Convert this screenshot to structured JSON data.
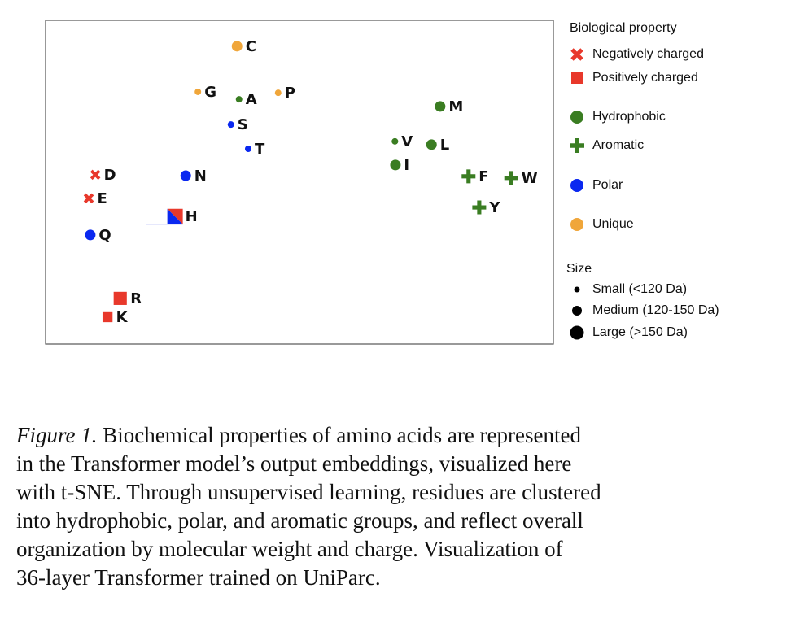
{
  "chart_data": {
    "type": "scatter",
    "title": "",
    "xlabel": "",
    "ylabel": "",
    "xlim": [
      0,
      100
    ],
    "ylim": [
      0,
      100
    ],
    "grid": false,
    "axes_ticks": false,
    "legend_placement": "right",
    "categories": {
      "negative": {
        "label": "Negatively charged",
        "marker": "x",
        "color": "#e8382b"
      },
      "positive": {
        "label": "Positively charged",
        "marker": "square",
        "color": "#e8382b"
      },
      "hydrophobic": {
        "label": "Hydrophobic",
        "marker": "circle",
        "color": "#3a7d22"
      },
      "aromatic": {
        "label": "Aromatic",
        "marker": "plus",
        "color": "#3a7d22"
      },
      "polar": {
        "label": "Polar",
        "marker": "circle",
        "color": "#0a28f0"
      },
      "unique": {
        "label": "Unique",
        "marker": "circle",
        "color": "#f0a63a"
      }
    },
    "points": [
      {
        "label": "C",
        "x": 37.7,
        "y": 92.0,
        "category": "unique",
        "size": "medium"
      },
      {
        "label": "G",
        "x": 30.0,
        "y": 77.9,
        "category": "unique",
        "size": "small"
      },
      {
        "label": "A",
        "x": 38.1,
        "y": 75.6,
        "category": "hydrophobic",
        "size": "small"
      },
      {
        "label": "P",
        "x": 45.8,
        "y": 77.6,
        "category": "unique",
        "size": "small"
      },
      {
        "label": "S",
        "x": 36.5,
        "y": 67.8,
        "category": "polar",
        "size": "small"
      },
      {
        "label": "T",
        "x": 39.9,
        "y": 60.3,
        "category": "polar",
        "size": "small"
      },
      {
        "label": "N",
        "x": 27.6,
        "y": 52.0,
        "category": "polar",
        "size": "medium"
      },
      {
        "label": "D",
        "x": 9.8,
        "y": 52.3,
        "category": "negative",
        "size": "medium"
      },
      {
        "label": "E",
        "x": 8.5,
        "y": 45.0,
        "category": "negative",
        "size": "medium"
      },
      {
        "label": "H",
        "x": 25.5,
        "y": 39.4,
        "category": "positive+polar",
        "size": "large"
      },
      {
        "label": "Q",
        "x": 8.8,
        "y": 33.7,
        "category": "polar",
        "size": "medium"
      },
      {
        "label": "R",
        "x": 14.7,
        "y": 14.1,
        "category": "positive",
        "size": "large"
      },
      {
        "label": "K",
        "x": 12.2,
        "y": 8.3,
        "category": "positive",
        "size": "medium"
      },
      {
        "label": "M",
        "x": 77.7,
        "y": 73.4,
        "category": "hydrophobic",
        "size": "medium"
      },
      {
        "label": "V",
        "x": 68.8,
        "y": 62.6,
        "category": "hydrophobic",
        "size": "small"
      },
      {
        "label": "L",
        "x": 76.0,
        "y": 61.6,
        "category": "hydrophobic",
        "size": "medium"
      },
      {
        "label": "I",
        "x": 68.9,
        "y": 55.3,
        "category": "hydrophobic",
        "size": "medium"
      },
      {
        "label": "F",
        "x": 83.3,
        "y": 51.8,
        "category": "aromatic",
        "size": "large"
      },
      {
        "label": "W",
        "x": 91.7,
        "y": 51.3,
        "category": "aromatic",
        "size": "large"
      },
      {
        "label": "Y",
        "x": 85.4,
        "y": 42.2,
        "category": "aromatic",
        "size": "large"
      }
    ]
  },
  "legend": {
    "property_title": "Biological property",
    "property_items": [
      {
        "label": "Negatively charged",
        "marker": "x",
        "color": "#e8382b"
      },
      {
        "label": "Positively charged",
        "marker": "square",
        "color": "#e8382b"
      },
      {
        "label": "Hydrophobic",
        "marker": "circle",
        "color": "#3a7d22"
      },
      {
        "label": "Aromatic",
        "marker": "plus",
        "color": "#3a7d22"
      },
      {
        "label": "Polar",
        "marker": "circle",
        "color": "#0a28f0"
      },
      {
        "label": "Unique",
        "marker": "circle",
        "color": "#f0a63a"
      }
    ],
    "size_title": "Size",
    "size_items": [
      {
        "label": "Small (<120 Da)",
        "size": "small"
      },
      {
        "label": "Medium (120-150 Da)",
        "size": "medium"
      },
      {
        "label": "Large (>150 Da)",
        "size": "large"
      }
    ]
  },
  "caption": {
    "label": "Figure 1.",
    "lines": [
      " Biochemical properties of amino acids are represented",
      "in the Transformer model’s output embeddings, visualized here",
      "with t-SNE. Through unsupervised learning, residues are clustered",
      "into hydrophobic, polar, and aromatic groups, and reflect overall",
      "organization by molecular weight and charge.  Visualization of",
      "36-layer Transformer trained on UniParc."
    ]
  }
}
